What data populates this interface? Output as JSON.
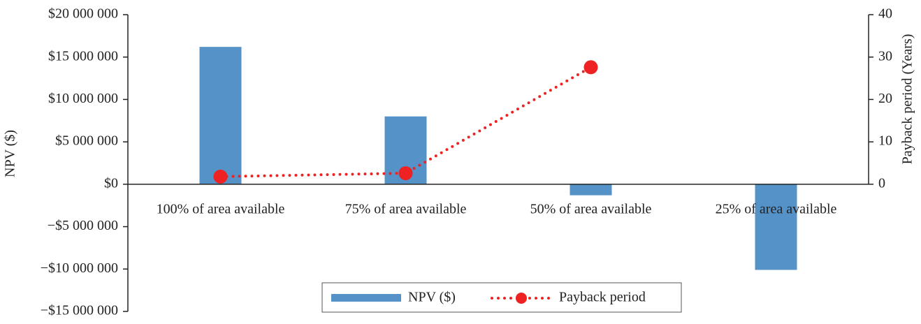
{
  "chart_data": {
    "type": "combo",
    "categories": [
      "100% of area available",
      "75% of area available",
      "50% of area available",
      "25% of area available"
    ],
    "series": [
      {
        "name": "NPV ($)",
        "type": "bar",
        "color": "#5592c8",
        "values": [
          16200000,
          8000000,
          -1300000,
          -10100000
        ]
      },
      {
        "name": "Payback period",
        "type": "line",
        "axis": "y2",
        "color": "#ee2222",
        "values": [
          1.8,
          2.6,
          27.6,
          null
        ]
      }
    ],
    "y_label": "NPV ($)",
    "y2_label": "Payback period (Years)",
    "ylim": [
      -15000000,
      20000000
    ],
    "yticks": [
      {
        "value": 20000000,
        "label": "$20 000 000"
      },
      {
        "value": 15000000,
        "label": "$15 000 000"
      },
      {
        "value": 10000000,
        "label": "$10 000 000"
      },
      {
        "value": 5000000,
        "label": "$5 000 000"
      },
      {
        "value": 0,
        "label": "$0"
      },
      {
        "value": -5000000,
        "label": "−$5 000 000"
      },
      {
        "value": -10000000,
        "label": "−$10 000 000"
      },
      {
        "value": -15000000,
        "label": "−$15 000 000"
      }
    ],
    "y2lim": [
      0,
      40
    ],
    "y2ticks": [
      0,
      10,
      20,
      30,
      40
    ],
    "legend": "bottom"
  }
}
